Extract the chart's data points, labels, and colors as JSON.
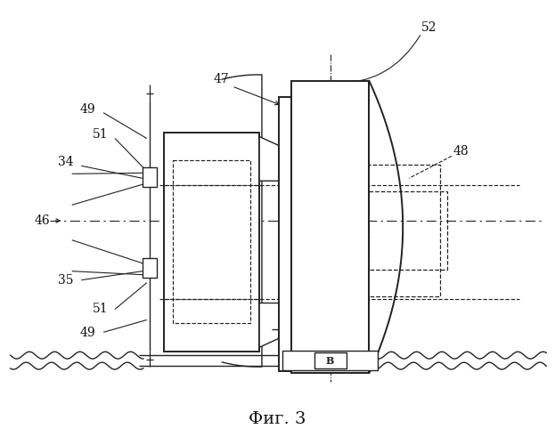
{
  "title": "Фиг. 3",
  "bg_color": "#ffffff",
  "line_color": "#222222",
  "label_color": "#111111"
}
